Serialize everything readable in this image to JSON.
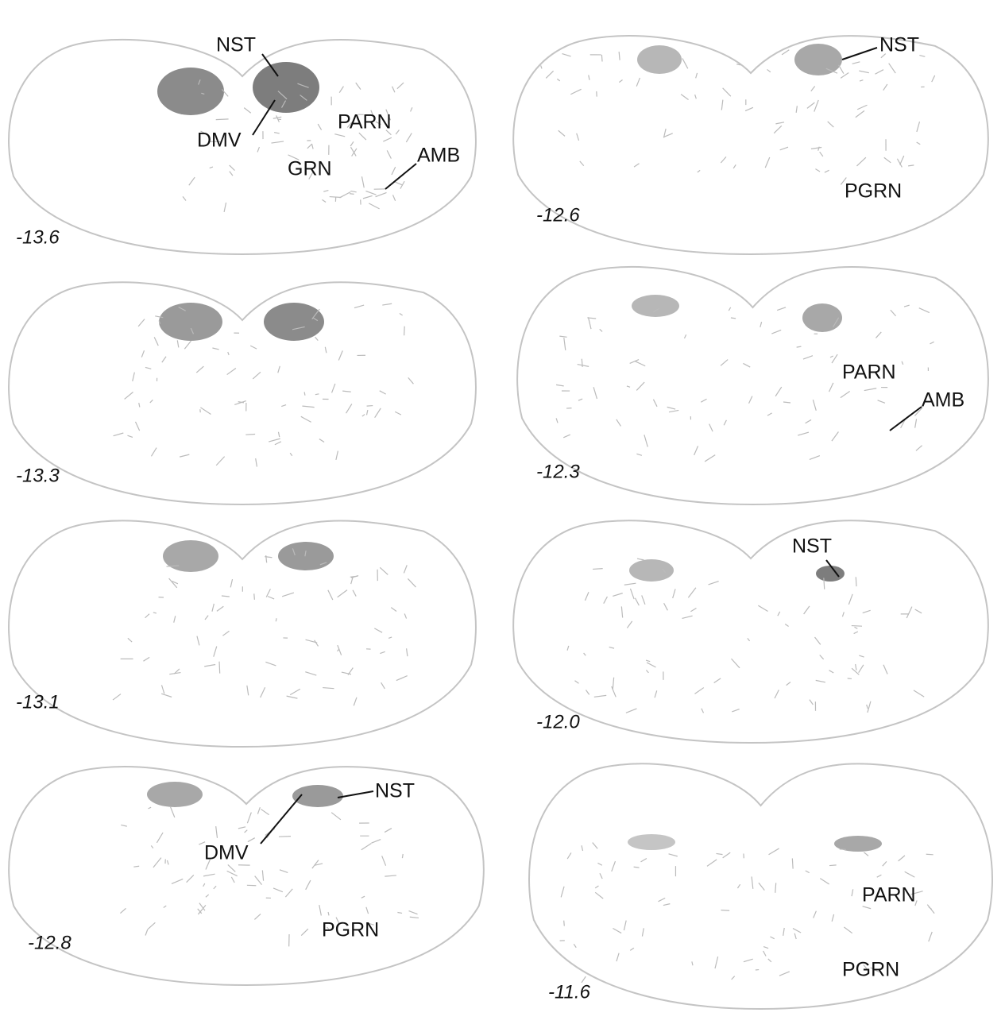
{
  "panels": [
    {
      "level": "-13.6",
      "labels": [
        "NST",
        "DMV",
        "PARN",
        "GRN",
        "AMB"
      ]
    },
    {
      "level": "-12.6",
      "labels": [
        "NST",
        "PGRN"
      ]
    },
    {
      "level": "-13.3"
    },
    {
      "level": "-12.3",
      "labels": [
        "PARN",
        "AMB"
      ]
    },
    {
      "level": "-13.1"
    },
    {
      "level": "-12.0",
      "labels": [
        "NST"
      ]
    },
    {
      "level": "-12.8",
      "labels": [
        "NST",
        "DMV",
        "PGRN"
      ]
    },
    {
      "level": "-11.6",
      "labels": [
        "PARN",
        "PGRN"
      ]
    }
  ]
}
